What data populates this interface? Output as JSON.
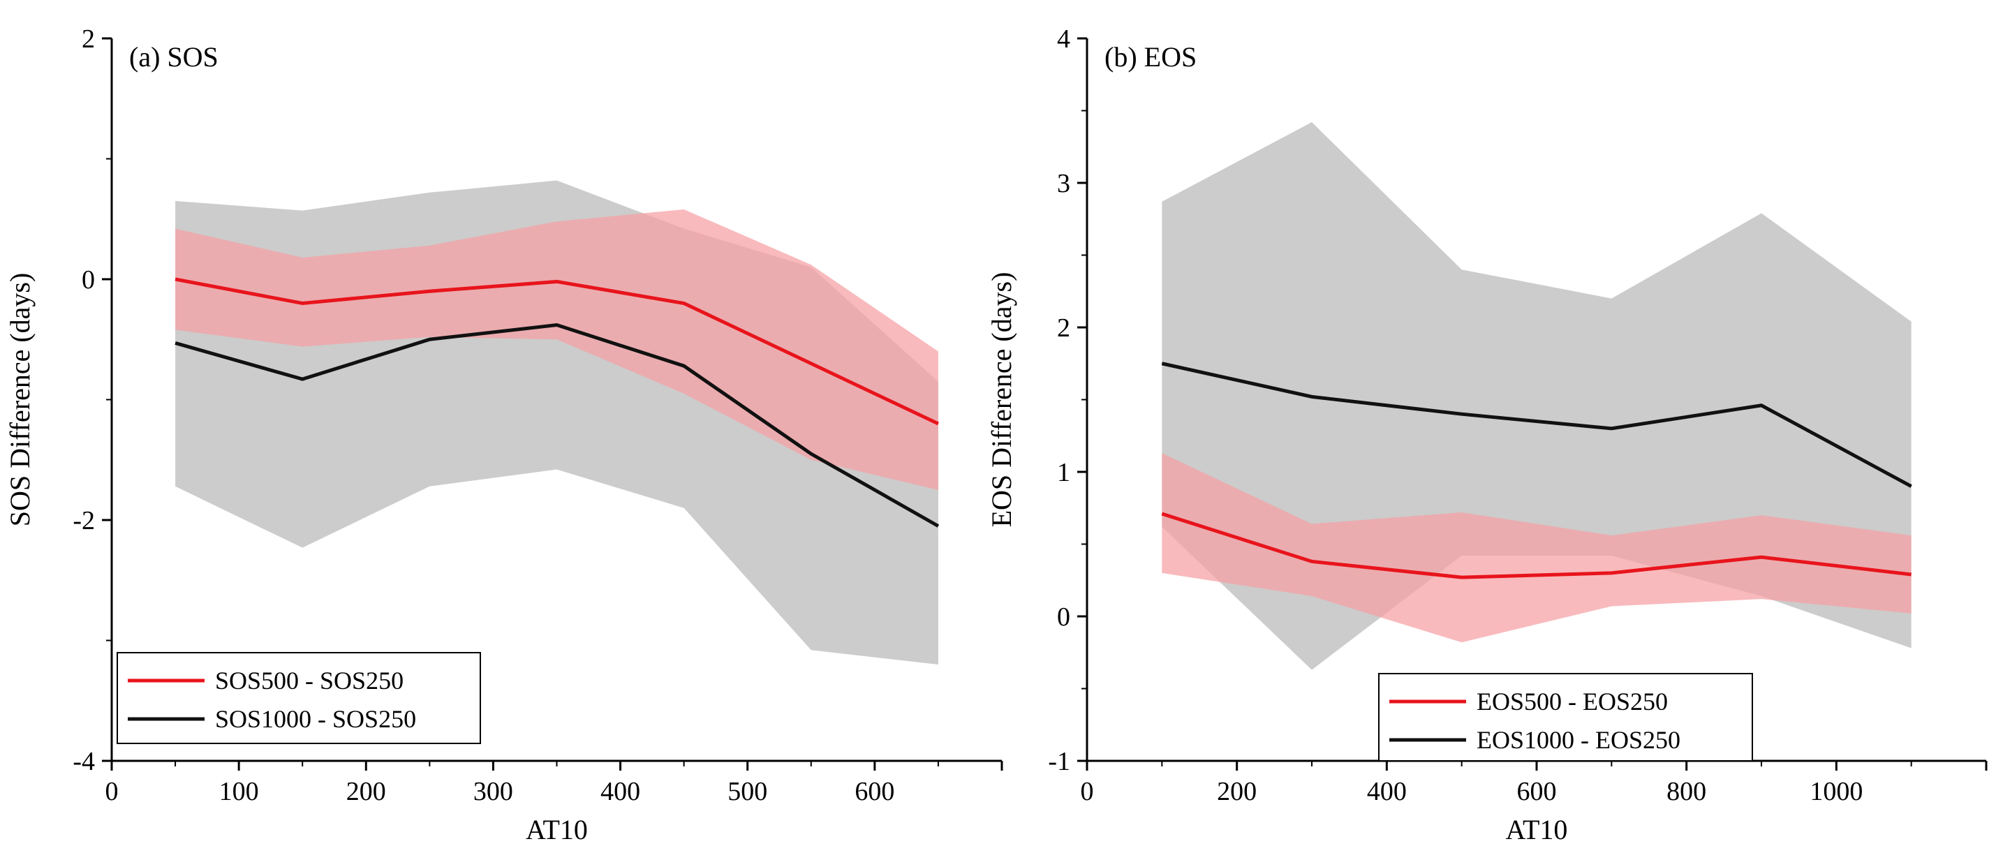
{
  "chart_data": [
    {
      "type": "line",
      "title": "(a) SOS",
      "xlabel": "AT10",
      "ylabel": "SOS Difference (days)",
      "xlim": [
        0,
        700
      ],
      "ylim": [
        -4,
        2
      ],
      "xticks": [
        0,
        100,
        200,
        300,
        400,
        500,
        600
      ],
      "yticks": [
        -4,
        -2,
        0,
        2
      ],
      "legend_position": "bottom-left",
      "x": [
        50,
        150,
        250,
        350,
        450,
        550,
        650
      ],
      "series": [
        {
          "name": "SOS500 - SOS250",
          "color": "#e8141c",
          "band_color": "#f7a0a3",
          "values": [
            0.0,
            -0.2,
            -0.1,
            -0.02,
            -0.2,
            -0.7,
            -1.2
          ],
          "band_upper": [
            0.42,
            0.18,
            0.28,
            0.48,
            0.58,
            0.12,
            -0.6
          ],
          "band_lower": [
            -0.42,
            -0.56,
            -0.48,
            -0.5,
            -0.95,
            -1.5,
            -1.75
          ]
        },
        {
          "name": "SOS1000 - SOS250",
          "color": "#111111",
          "band_color": "#cccccc",
          "values": [
            -0.53,
            -0.83,
            -0.5,
            -0.38,
            -0.72,
            -1.45,
            -2.05
          ],
          "band_upper": [
            0.65,
            0.57,
            0.72,
            0.82,
            0.42,
            0.1,
            -0.85
          ],
          "band_lower": [
            -1.72,
            -2.23,
            -1.72,
            -1.58,
            -1.9,
            -3.08,
            -3.2
          ]
        }
      ]
    },
    {
      "type": "line",
      "title": "(b) EOS",
      "xlabel": "AT10",
      "ylabel": "EOS Difference (days)",
      "xlim": [
        0,
        1200
      ],
      "ylim": [
        -1,
        4
      ],
      "xticks": [
        0,
        200,
        400,
        600,
        800,
        1000
      ],
      "yticks": [
        -1,
        0,
        1,
        2,
        3,
        4
      ],
      "legend_position": "bottom-center",
      "x": [
        100,
        300,
        500,
        700,
        900,
        1100
      ],
      "series": [
        {
          "name": "EOS500 - EOS250",
          "color": "#e8141c",
          "band_color": "#f7a0a3",
          "values": [
            0.71,
            0.38,
            0.27,
            0.3,
            0.41,
            0.29
          ],
          "band_upper": [
            1.13,
            0.64,
            0.72,
            0.56,
            0.7,
            0.56
          ],
          "band_lower": [
            0.3,
            0.14,
            -0.18,
            0.07,
            0.12,
            0.02
          ]
        },
        {
          "name": "EOS1000 - EOS250",
          "color": "#111111",
          "band_color": "#cccccc",
          "values": [
            1.75,
            1.52,
            1.4,
            1.3,
            1.46,
            0.9
          ],
          "band_upper": [
            2.87,
            3.42,
            2.4,
            2.2,
            2.79,
            2.04
          ],
          "band_lower": [
            0.62,
            -0.37,
            0.42,
            0.42,
            0.14,
            -0.22
          ]
        }
      ]
    }
  ]
}
